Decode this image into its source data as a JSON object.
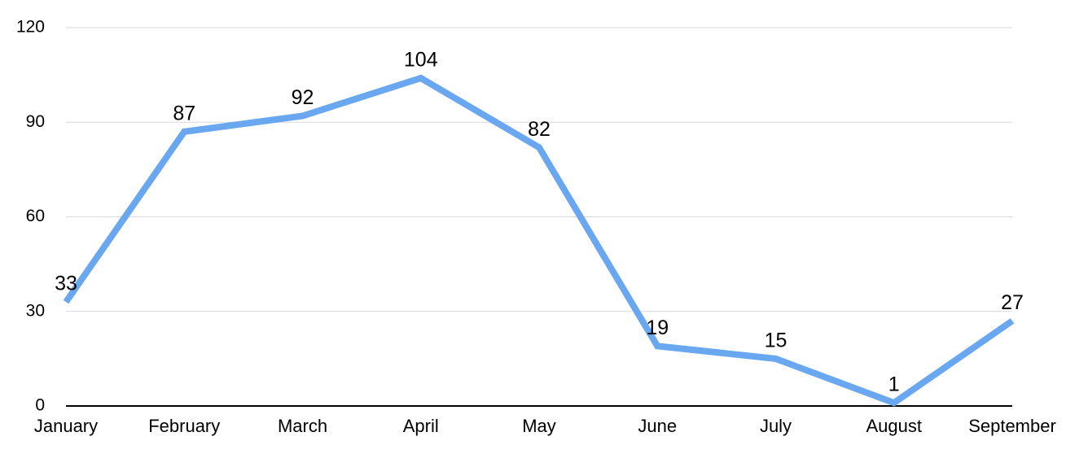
{
  "chart_data": {
    "type": "line",
    "categories": [
      "January",
      "February",
      "March",
      "April",
      "May",
      "June",
      "July",
      "August",
      "September"
    ],
    "values": [
      33,
      87,
      92,
      104,
      82,
      19,
      15,
      1,
      27
    ],
    "color": "#69a7f0",
    "ylim": [
      0,
      120
    ],
    "yticks": [
      0,
      30,
      60,
      90,
      120
    ],
    "grid": true
  }
}
